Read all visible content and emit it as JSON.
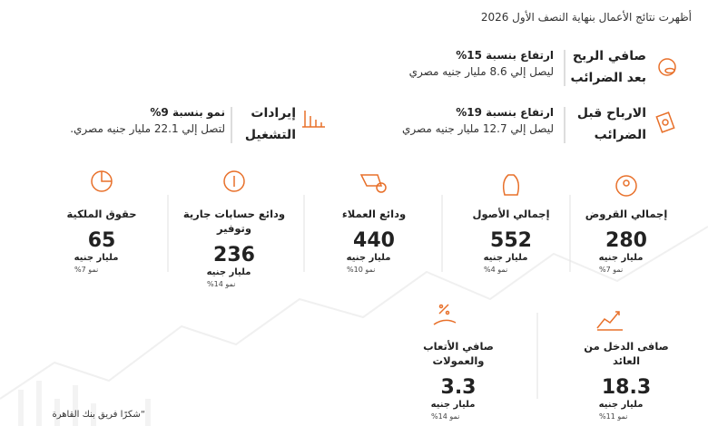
{
  "header": {
    "title": "أظهرت نتائج الأعمال بنهاية النصف الأول 2026"
  },
  "highlights": [
    {
      "label": [
        "صافي الربح",
        "بعد الضرائب"
      ],
      "headline": "ارتفاع بنسبة 15%",
      "detail": "ليصل إلي 8.6 مليار جنيه مصري"
    },
    {
      "label": [
        "الارباح قبل",
        "الضرائب"
      ],
      "headline": "ارتفاع بنسبة 19%",
      "detail": "ليصل إلي 12.7 مليار جنيه مصري"
    },
    {
      "label": [
        "إيرادات",
        "التشغيل"
      ],
      "headline": "نمو بنسبة 9%",
      "detail": "لتصل إلي 22.1 مليار جنيه مصري."
    }
  ],
  "metrics": [
    {
      "label": "إجمالي القروض",
      "value": 280,
      "unit": "مليار جنيه",
      "growth": "نمو 7%"
    },
    {
      "label": "إجمالي الأصول",
      "value": 552,
      "unit": "مليار جنيه",
      "growth": "نمو 4%"
    },
    {
      "label": "ودائع العملاء",
      "value": 440,
      "unit": "مليار جنيه",
      "growth": "نمو 10%"
    },
    {
      "label": "ودائع حسابات جارية وتوفير",
      "value": 236,
      "unit": "مليار جنيه",
      "growth": "نمو 14%"
    },
    {
      "label": "حقوق الملكية",
      "value": 65,
      "unit": "مليار جنيه",
      "growth": "نمو 7%"
    },
    {
      "label": "صافى الدخل من العائد",
      "value": 18.3,
      "unit": "مليار جنيه",
      "growth": "نمو 11%"
    },
    {
      "label": "صافي الأتعاب والعمولات",
      "value": 3.3,
      "unit": "مليار جنيه",
      "growth": "نمو 14%"
    }
  ],
  "quote": "“شكرًا فريق بنك القاهرة"
}
